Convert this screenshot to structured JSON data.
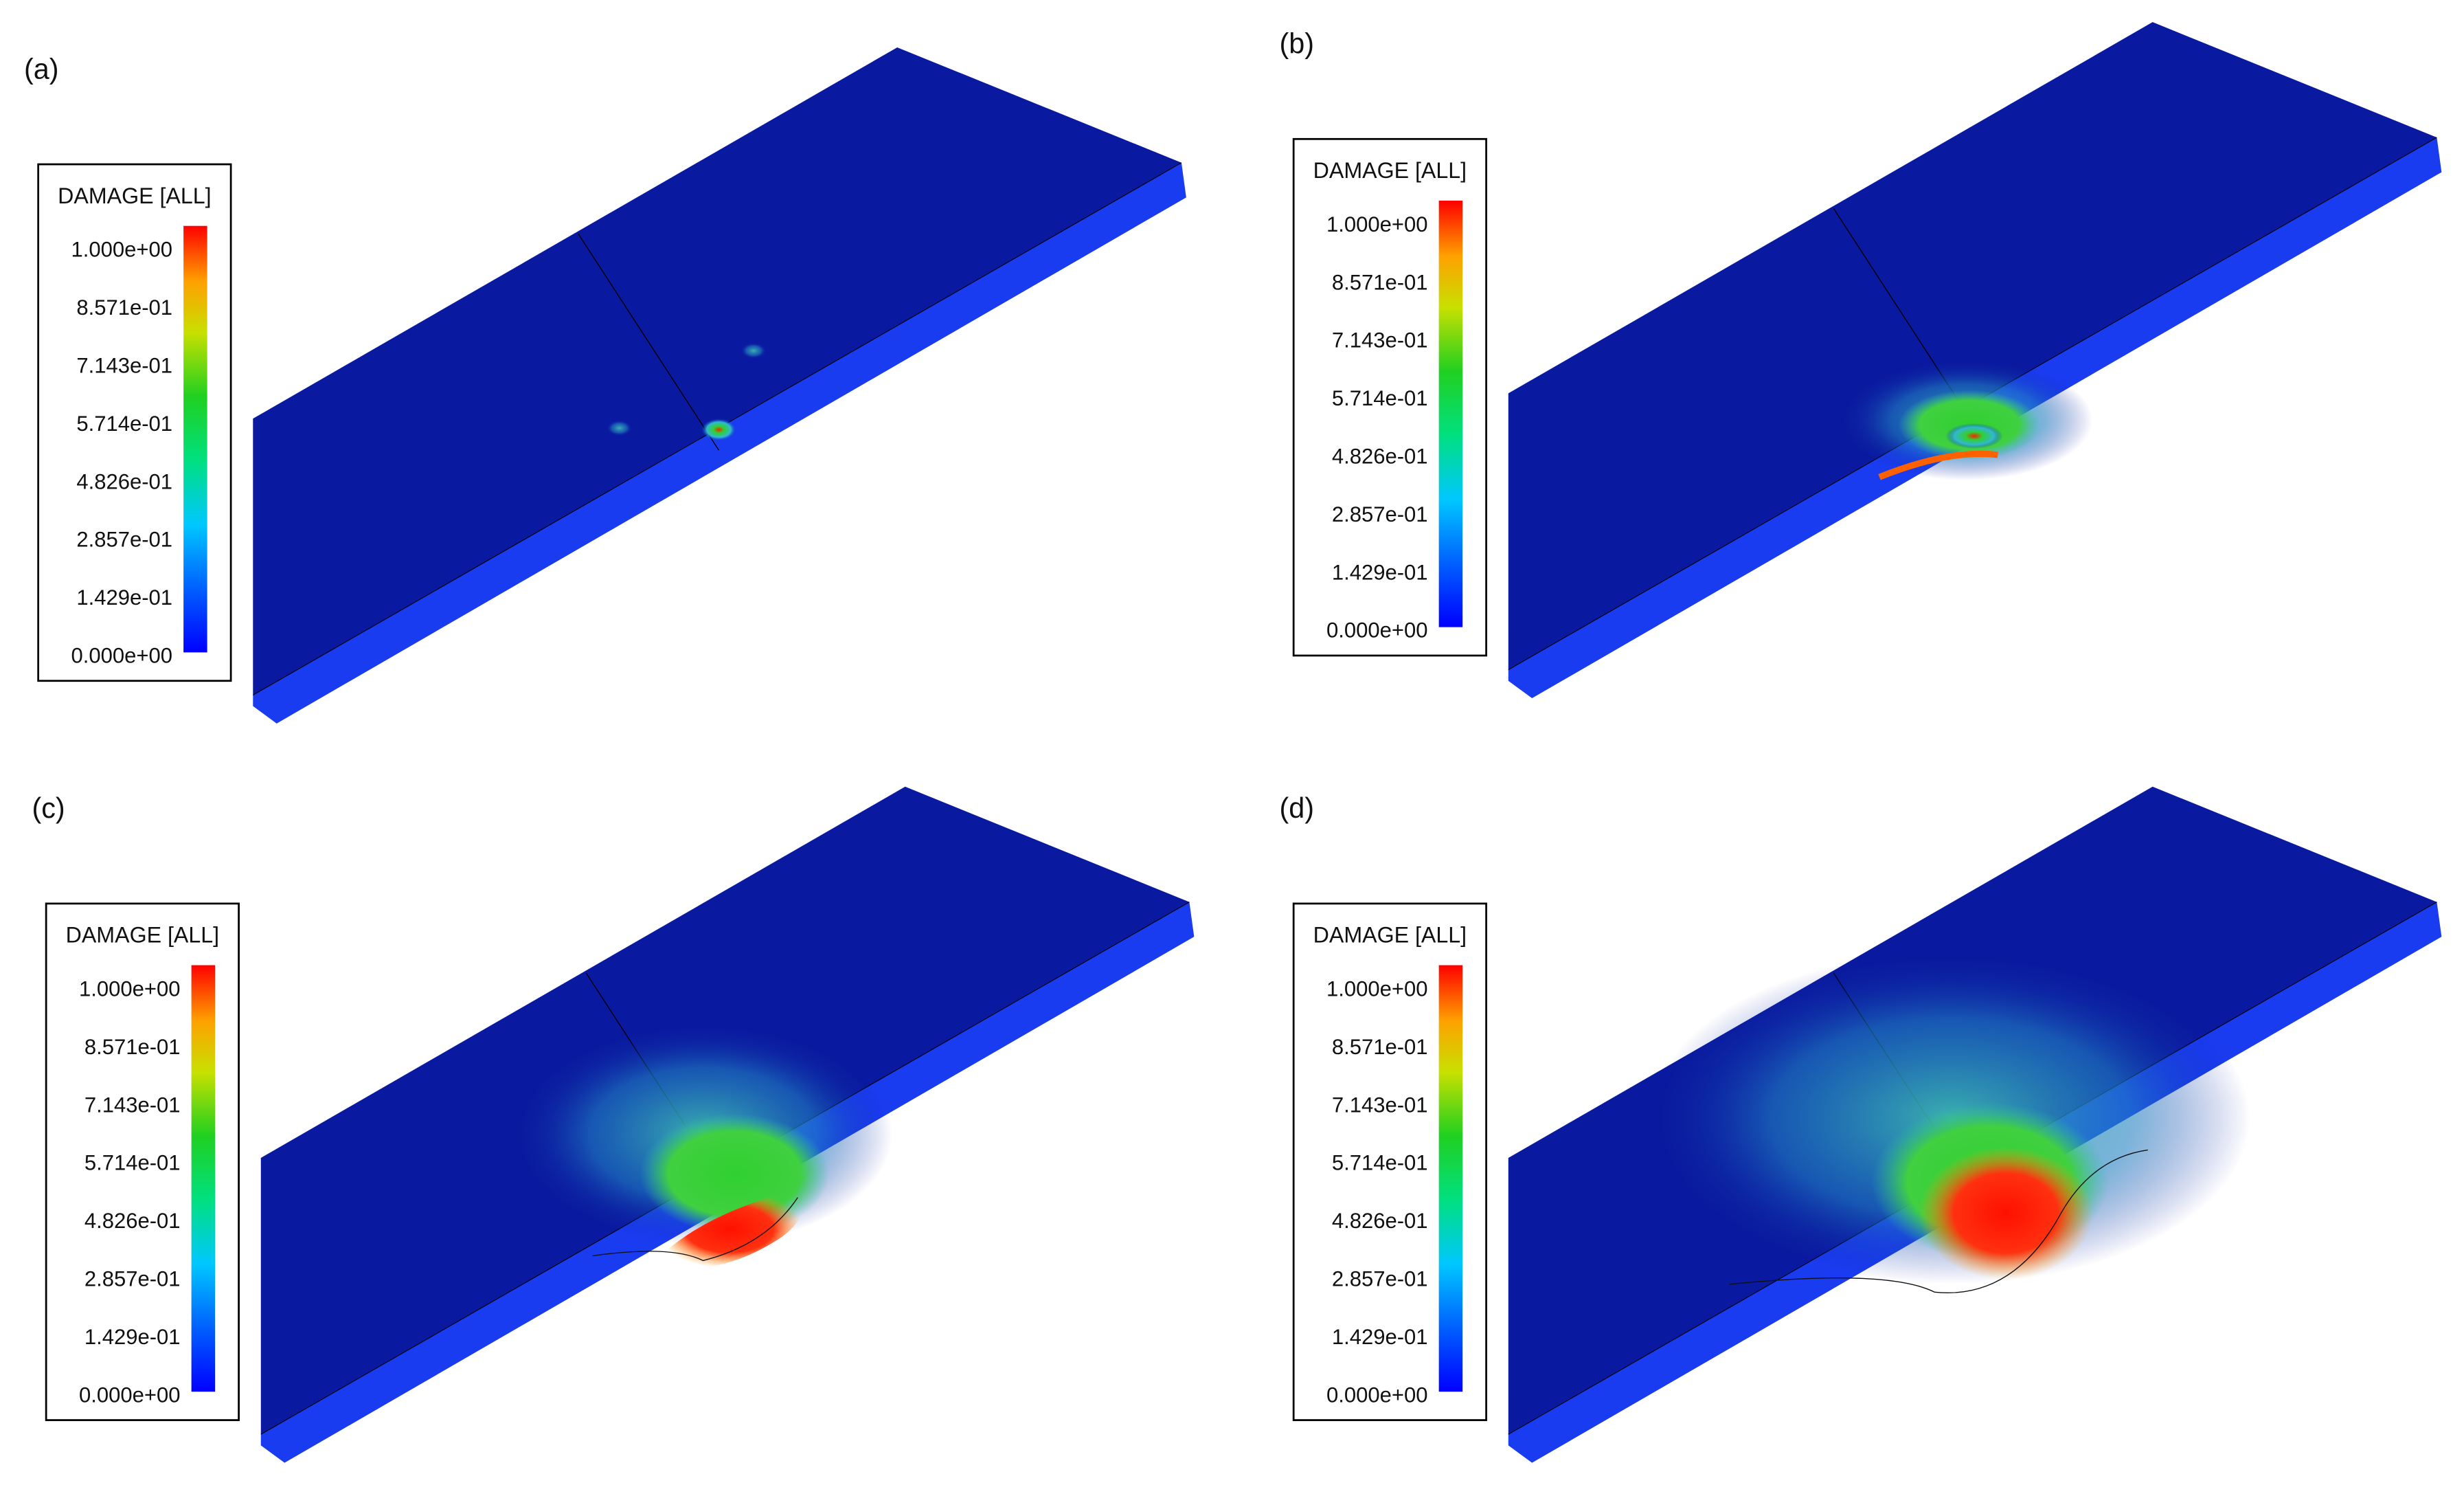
{
  "panels": [
    {
      "label": "(a)",
      "legend": {
        "title": "DAMAGE [ALL]",
        "labels": [
          "1.000e+00",
          "8.571e-01",
          "7.143e-01",
          "5.714e-01",
          "4.826e-01",
          "2.857e-01",
          "1.429e-01",
          "0.000e+00"
        ]
      }
    },
    {
      "label": "(b)",
      "legend": {
        "title": "DAMAGE [ALL]",
        "labels": [
          "1.000e+00",
          "8.571e-01",
          "7.143e-01",
          "5.714e-01",
          "4.826e-01",
          "2.857e-01",
          "1.429e-01",
          "0.000e+00"
        ]
      }
    },
    {
      "label": "(c)",
      "legend": {
        "title": "DAMAGE [ALL]",
        "labels": [
          "1.000e+00",
          "8.571e-01",
          "7.143e-01",
          "5.714e-01",
          "4.826e-01",
          "2.857e-01",
          "1.429e-01",
          "0.000e+00"
        ]
      }
    },
    {
      "label": "(d)",
      "legend": {
        "title": "DAMAGE [ALL]",
        "labels": [
          "1.000e+00",
          "8.571e-01",
          "7.143e-01",
          "5.714e-01",
          "4.826e-01",
          "2.857e-01",
          "1.429e-01",
          "0.000e+00"
        ]
      }
    }
  ]
}
